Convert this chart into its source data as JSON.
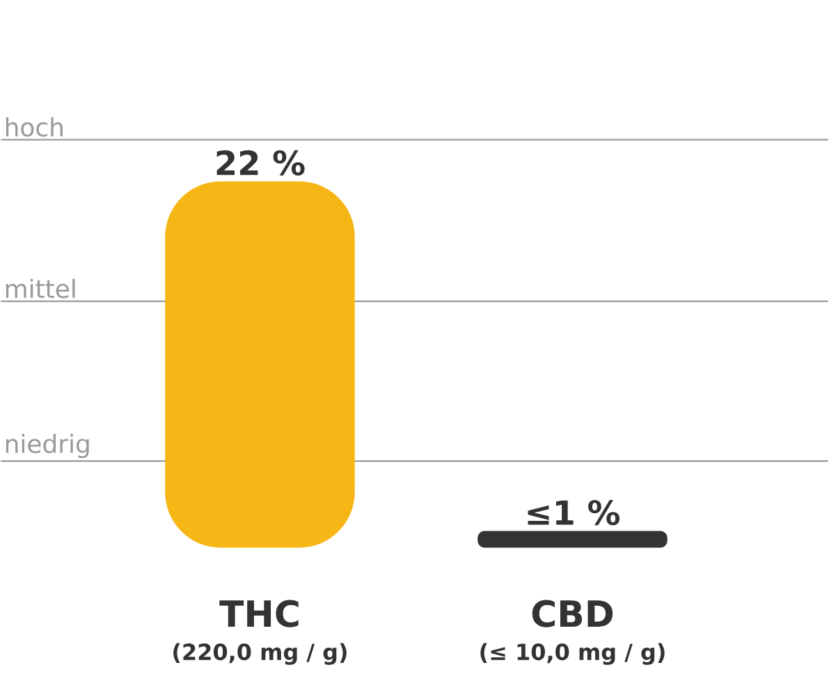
{
  "chart_data": {
    "type": "bar",
    "categories": [
      "THC",
      "CBD"
    ],
    "values": [
      22,
      1
    ],
    "colors": [
      "#f6b716",
      "#333333"
    ],
    "value_labels": [
      "22 %",
      "≤1 %"
    ],
    "ref_lines": [
      {
        "axis": "y",
        "value": 24.5,
        "label": "hoch",
        "color": "#999999"
      },
      {
        "axis": "y",
        "value": 14.8,
        "label": "mittel",
        "color": "#999999"
      },
      {
        "axis": "y",
        "value": 5.2,
        "label": "niedrig",
        "color": "#999999"
      }
    ],
    "annotations": [
      "(220,0 mg / g)",
      "(≤ 10,0 mg / g)"
    ]
  }
}
